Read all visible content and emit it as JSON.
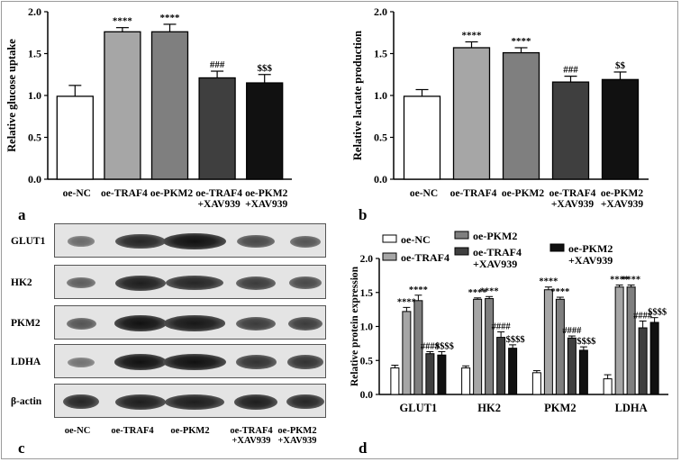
{
  "chart_data": [
    {
      "panel": "a",
      "type": "bar",
      "ylabel": "Relative glucose uptake",
      "ylim": [
        0,
        2.0
      ],
      "yticks": [
        "0.0",
        "0.5",
        "1.0",
        "1.5",
        "2.0"
      ],
      "categories": [
        [
          "oe-NC"
        ],
        [
          "oe-TRAF4"
        ],
        [
          "oe-PKM2"
        ],
        [
          "oe-TRAF4",
          "+XAV939"
        ],
        [
          "oe-PKM2",
          "+XAV939"
        ]
      ],
      "values": [
        0.99,
        1.76,
        1.76,
        1.21,
        1.15
      ],
      "errors": [
        0.13,
        0.05,
        0.09,
        0.08,
        0.1
      ],
      "annotations": [
        "",
        "****",
        "****",
        "###",
        "$$$"
      ],
      "colors": [
        "#ffffff",
        "#a6a6a6",
        "#7f7f7f",
        "#3f3f3f",
        "#111111"
      ]
    },
    {
      "panel": "b",
      "type": "bar",
      "ylabel": "Relative lactate production",
      "ylim": [
        0,
        2.0
      ],
      "yticks": [
        "0.0",
        "0.5",
        "1.0",
        "1.5",
        "2.0"
      ],
      "categories": [
        [
          "oe-NC"
        ],
        [
          "oe-TRAF4"
        ],
        [
          "oe-PKM2"
        ],
        [
          "oe-TRAF4",
          "+XAV939"
        ],
        [
          "oe-PKM2",
          "+XAV939"
        ]
      ],
      "values": [
        0.99,
        1.57,
        1.51,
        1.16,
        1.19
      ],
      "errors": [
        0.08,
        0.07,
        0.06,
        0.07,
        0.09
      ],
      "annotations": [
        "",
        "****",
        "****",
        "###",
        "$$"
      ],
      "colors": [
        "#ffffff",
        "#a6a6a6",
        "#7f7f7f",
        "#3f3f3f",
        "#111111"
      ]
    },
    {
      "panel": "d",
      "type": "bar",
      "ylabel": "Relative protein expression",
      "ylim": [
        0,
        2.0
      ],
      "yticks": [
        "0.0",
        "0.5",
        "1.0",
        "1.5",
        "2.0"
      ],
      "categories": [
        "GLUT1",
        "HK2",
        "PKM2",
        "LDHA"
      ],
      "legend": [
        {
          "label": "oe-NC",
          "color": "#ffffff"
        },
        {
          "label": "oe-TRAF4",
          "color": "#a6a6a6"
        },
        {
          "label": "oe-PKM2",
          "color": "#7f7f7f"
        },
        {
          "label": "oe-TRAF4\n+XAV939",
          "color": "#3f3f3f"
        },
        {
          "label": "oe-PKM2\n+XAV939",
          "color": "#111111"
        }
      ],
      "series": [
        {
          "name": "oe-NC",
          "values": [
            0.39,
            0.39,
            0.32,
            0.23
          ],
          "errors": [
            0.04,
            0.03,
            0.03,
            0.06
          ]
        },
        {
          "name": "oe-TRAF4",
          "values": [
            1.22,
            1.4,
            1.54,
            1.58
          ],
          "errors": [
            0.06,
            0.02,
            0.04,
            0.03
          ]
        },
        {
          "name": "oe-PKM2",
          "values": [
            1.38,
            1.41,
            1.4,
            1.58
          ],
          "errors": [
            0.08,
            0.03,
            0.03,
            0.03
          ]
        },
        {
          "name": "oe-TRAF4\n+XAV939",
          "values": [
            0.6,
            0.84,
            0.83,
            0.98
          ],
          "errors": [
            0.03,
            0.08,
            0.03,
            0.1
          ]
        },
        {
          "name": "oe-PKM2\n+XAV939",
          "values": [
            0.58,
            0.68,
            0.65,
            1.06
          ],
          "errors": [
            0.05,
            0.05,
            0.05,
            0.07
          ]
        }
      ],
      "annotations": {
        "oe-TRAF4": [
          "****",
          "****",
          "****",
          "****"
        ],
        "oe-PKM2": [
          "****",
          "****",
          "****",
          "****"
        ],
        "oe-TRAF4\n+XAV939": [
          "####",
          "####",
          "####",
          "####"
        ],
        "oe-PKM2\n+XAV939": [
          "$$$$",
          "$$$$",
          "$$$$",
          "$$$$"
        ]
      }
    }
  ],
  "blot": {
    "panel": "c",
    "proteins": [
      "GLUT1",
      "HK2",
      "PKM2",
      "LDHA",
      "β-actin"
    ],
    "lanes": [
      [
        "oe-NC"
      ],
      [
        "oe-TRAF4"
      ],
      [
        "oe-PKM2"
      ],
      [
        "oe-TRAF4",
        "+XAV939"
      ],
      [
        "oe-PKM2",
        "+XAV939"
      ]
    ],
    "intensity": [
      [
        0.35,
        0.85,
        1.0,
        0.6,
        0.5
      ],
      [
        0.45,
        0.9,
        0.85,
        0.7,
        0.6
      ],
      [
        0.5,
        1.0,
        0.95,
        0.7,
        0.7
      ],
      [
        0.3,
        1.0,
        1.0,
        0.75,
        0.75
      ],
      [
        0.85,
        0.9,
        0.9,
        0.9,
        0.85
      ]
    ]
  }
}
